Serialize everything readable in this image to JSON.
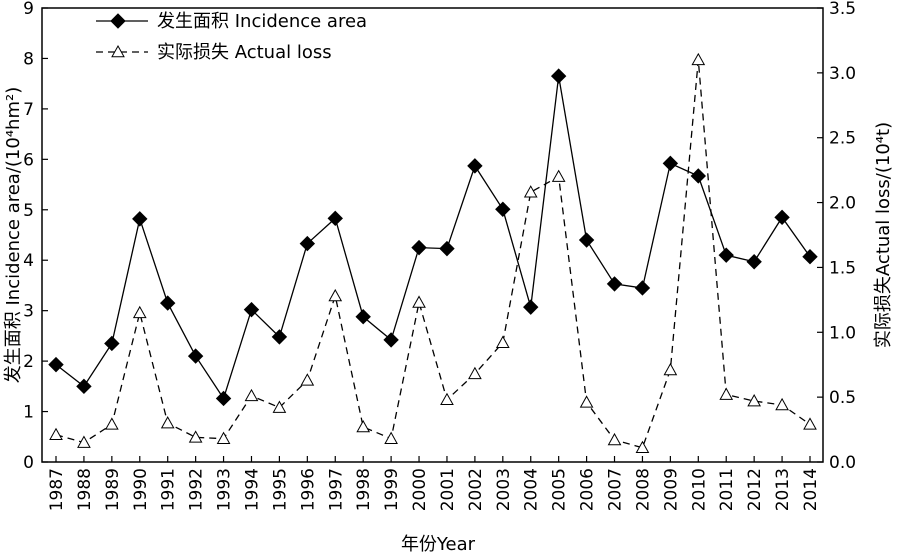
{
  "chart_data": {
    "type": "line",
    "xlabel": "年份Year",
    "ylabel_left": "发生面积 Incidence area/(10⁴hm²)",
    "ylabel_right": "实际损失Actual loss/(10⁴t)",
    "ylim_left": [
      0,
      9
    ],
    "ylim_right": [
      0,
      3.5
    ],
    "yticks_left": [
      "0",
      "1",
      "2",
      "3",
      "4",
      "5",
      "6",
      "7",
      "8",
      "9"
    ],
    "yticks_right": [
      "0.0",
      "0.5",
      "1.0",
      "1.5",
      "2.0",
      "2.5",
      "3.0",
      "3.5"
    ],
    "legend_position": "top-left",
    "grid": false,
    "x": [
      "1987",
      "1988",
      "1989",
      "1990",
      "1991",
      "1992",
      "1993",
      "1994",
      "1995",
      "1996",
      "1997",
      "1998",
      "1999",
      "2000",
      "2001",
      "2002",
      "2003",
      "2004",
      "2005",
      "2006",
      "2007",
      "2008",
      "2009",
      "2010",
      "2011",
      "2012",
      "2013",
      "2014"
    ],
    "series": [
      {
        "name": "发生面积 Incidence area",
        "axis": "left",
        "style": "solid",
        "marker": "filled-diamond",
        "values": [
          1.93,
          1.5,
          2.35,
          4.82,
          3.15,
          2.1,
          1.26,
          3.02,
          2.48,
          4.33,
          4.83,
          2.88,
          2.42,
          4.25,
          4.23,
          5.87,
          5.01,
          3.07,
          7.65,
          4.4,
          3.53,
          3.45,
          5.92,
          5.67,
          4.1,
          3.97,
          4.85,
          4.07
        ]
      },
      {
        "name": "实际损失 Actual loss",
        "axis": "right",
        "style": "dashed",
        "marker": "open-triangle",
        "values": [
          0.21,
          0.15,
          0.29,
          1.15,
          0.3,
          0.19,
          0.18,
          0.51,
          0.42,
          0.63,
          1.28,
          0.27,
          0.18,
          1.23,
          0.48,
          0.68,
          0.92,
          2.08,
          2.2,
          0.46,
          0.17,
          0.11,
          0.71,
          3.1,
          0.52,
          0.47,
          0.44,
          0.29
        ]
      }
    ]
  }
}
